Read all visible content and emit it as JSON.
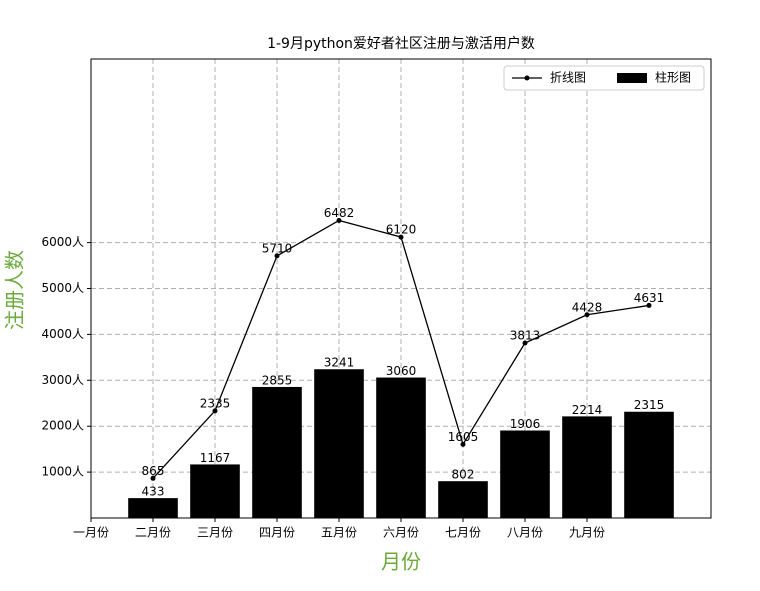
{
  "chart_data": {
    "type": "bar",
    "title": "1-9月python爱好者社区注册与激活用户数",
    "x_label": "月份",
    "y_label": "注册人数",
    "x": [
      1,
      2,
      3,
      4,
      5,
      6,
      7,
      8,
      9
    ],
    "series": [
      {
        "name": "折线图",
        "type": "line",
        "color": "#000000",
        "values": [
          865,
          2335,
          5710,
          6482,
          6120,
          1605,
          3813,
          4428,
          4631
        ]
      },
      {
        "name": "柱形图",
        "type": "bar",
        "color": "#000000",
        "values": [
          433,
          1167,
          2855,
          3241,
          3060,
          802,
          1906,
          2214,
          2315
        ]
      }
    ],
    "xlim": [
      0,
      10
    ],
    "xticks": [
      {
        "value": 0,
        "label": "一月份"
      },
      {
        "value": 1,
        "label": "二月份"
      },
      {
        "value": 2,
        "label": "三月份"
      },
      {
        "value": 3,
        "label": "四月份"
      },
      {
        "value": 4,
        "label": "五月份"
      },
      {
        "value": 5,
        "label": "六月份"
      },
      {
        "value": 6,
        "label": "七月份"
      },
      {
        "value": 7,
        "label": "八月份"
      },
      {
        "value": 8,
        "label": "九月份"
      }
    ],
    "ylim": [
      0,
      10000
    ],
    "yticks": [
      {
        "value": 1000,
        "label": "1000人"
      },
      {
        "value": 2000,
        "label": "2000人"
      },
      {
        "value": 3000,
        "label": "3000人"
      },
      {
        "value": 4000,
        "label": "4000人"
      },
      {
        "value": 5000,
        "label": "5000人"
      },
      {
        "value": 6000,
        "label": "6000人"
      }
    ],
    "grid": true,
    "legend": "upper right",
    "label_color": "#6aaa3a"
  }
}
